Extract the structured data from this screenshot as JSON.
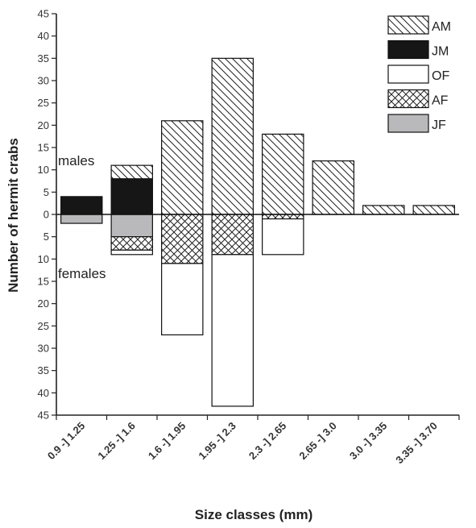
{
  "chart_data": {
    "type": "bar",
    "xlabel": "Size classes (mm)",
    "ylabel": "Number of hermit crabs",
    "ylim": [
      -45,
      45
    ],
    "y_tick_step": 5,
    "y_ticks_absolute": true,
    "categories": [
      "0.9 -] 1.25",
      "1.25 -] 1.6",
      "1.6 -] 1.95",
      "1.95 -] 2.3",
      "2.3 -] 2.65",
      "2.65 -] 3.0",
      "3.0 -] 3.35",
      "3.35 -] 3.70"
    ],
    "series": [
      {
        "name": "AM",
        "direction": "up",
        "pattern": "diagonal-hatch",
        "values": [
          0,
          3,
          21,
          35,
          18,
          12,
          2,
          2
        ]
      },
      {
        "name": "JM",
        "direction": "up",
        "pattern": "solid-black",
        "values": [
          4,
          8,
          0,
          0,
          0,
          0,
          0,
          0
        ]
      },
      {
        "name": "OF",
        "direction": "down",
        "pattern": "white",
        "values": [
          0,
          1,
          16,
          34,
          8,
          0,
          0,
          0
        ]
      },
      {
        "name": "AF",
        "direction": "down",
        "pattern": "cross-hatch",
        "values": [
          0,
          3,
          11,
          9,
          1,
          0,
          0,
          0
        ]
      },
      {
        "name": "JF",
        "direction": "down",
        "pattern": "solid-gray",
        "values": [
          2,
          5,
          0,
          0,
          0,
          0,
          0,
          0
        ]
      }
    ],
    "legend_order": [
      "AM",
      "JM",
      "OF",
      "AF",
      "JF"
    ],
    "stack_order_up": [
      "JM",
      "AM"
    ],
    "stack_order_down": [
      "JF",
      "AF",
      "OF"
    ],
    "legend_position": "top-right",
    "annotations": [
      "males",
      "females"
    ],
    "grid": false
  }
}
